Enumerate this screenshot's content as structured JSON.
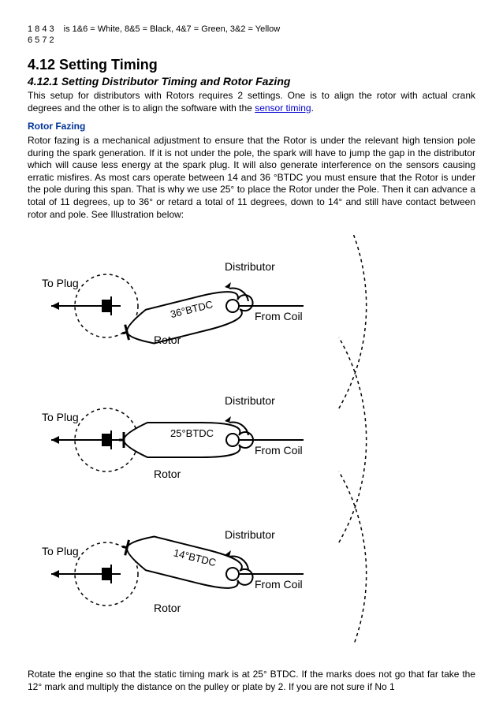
{
  "top": {
    "col1_line1": "1 8 4 3",
    "col1_line2": "6 5 7 2",
    "desc": "is 1&6 = White, 8&5 = Black, 4&7 = Green, 3&2 = Yellow"
  },
  "heading": "4.12 Setting Timing",
  "subheading": "4.12.1 Setting Distributor Timing and Rotor Fazing",
  "intro_a": "This setup for distributors with Rotors requires 2 settings. One is to align the rotor with actual crank degrees and the other is to align the software with the ",
  "intro_link": "sensor timing",
  "intro_b": ".",
  "rotor_h": "Rotor Fazing",
  "rotor_p": "Rotor fazing is a mechanical adjustment to ensure that the Rotor is under the relevant high tension pole during the spark generation. If it is not under the pole, the spark will have to jump the gap in the distributor which will cause less energy at the spark plug. It will also generate interference on the sensors causing erratic misfires. As most cars operate between 14 and 36 °BTDC you must ensure that the Rotor is under the pole during this span. That is why we use 25° to place the Rotor under the Pole. Then it can advance a total of 11 degrees, up to 36° or retard a total of 11 degrees, down to 14° and still have contact between rotor and pole. See Illustration below:",
  "bottom_p": "Rotate the engine so that the static timing mark is at 25° BTDC. If the marks does not go that far take the 12° mark and multiply the distance on the pulley or plate by 2. If you are not sure if No 1",
  "diagrams": [
    {
      "angle": -14,
      "label": "36°BTDC",
      "labels": {
        "dist": "Distributor",
        "plug": "To Plug",
        "rotor": "Rotor",
        "coil": "From Coil"
      }
    },
    {
      "angle": 0,
      "label": "25°BTDC",
      "labels": {
        "dist": "Distributor",
        "plug": "To Plug",
        "rotor": "Rotor",
        "coil": "From Coil"
      }
    },
    {
      "angle": 14,
      "label": "14°BTDC",
      "labels": {
        "dist": "Distributor",
        "plug": "To Plug",
        "rotor": "Rotor",
        "coil": "From Coil"
      }
    }
  ],
  "style": {
    "stroke": "#000000",
    "dash": "4,4",
    "font": "13px Arial"
  }
}
